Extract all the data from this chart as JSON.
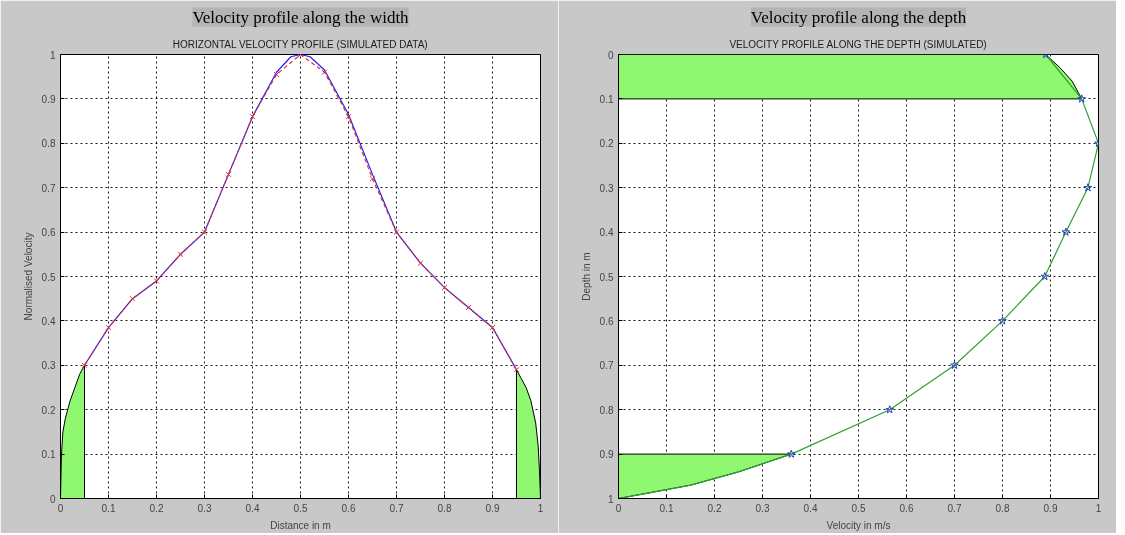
{
  "chart_data": [
    {
      "type": "line",
      "title": "Velocity profile along the width",
      "subtitle": "HORIZONTAL VELOCITY PROFILE (SIMULATED DATA)",
      "xlabel": "Distance in m",
      "ylabel": "Normalised Velocity",
      "xlim": [
        0,
        1
      ],
      "ylim": [
        0,
        1
      ],
      "xticks": [
        0,
        0.1,
        0.2,
        0.3,
        0.4,
        0.5,
        0.6,
        0.7,
        0.8,
        0.9,
        1
      ],
      "yticks": [
        0,
        0.1,
        0.2,
        0.3,
        0.4,
        0.5,
        0.6,
        0.7,
        0.8,
        0.9,
        1
      ],
      "grid": true,
      "series": [
        {
          "type": "area",
          "color": "#90f870",
          "x": [
            0,
            0.002,
            0.005,
            0.01,
            0.02,
            0.03,
            0.04,
            0.05,
            0.05
          ],
          "values": [
            0,
            0.1,
            0.15,
            0.18,
            0.22,
            0.25,
            0.28,
            0.3,
            0
          ]
        },
        {
          "type": "area",
          "color": "#90f870",
          "x": [
            0.95,
            0.95,
            0.96,
            0.97,
            0.98,
            0.99,
            0.995,
            0.998,
            1
          ],
          "values": [
            0,
            0.29,
            0.27,
            0.25,
            0.22,
            0.17,
            0.12,
            0.06,
            0
          ]
        },
        {
          "type": "line",
          "color": "#2020ff",
          "line_style": "solid",
          "marker": "none",
          "x": [
            0.05,
            0.1,
            0.15,
            0.2,
            0.25,
            0.3,
            0.35,
            0.4,
            0.45,
            0.48,
            0.5,
            0.52,
            0.55,
            0.6,
            0.65,
            0.7,
            0.75,
            0.8,
            0.85,
            0.9,
            0.95
          ],
          "values": [
            0.3,
            0.385,
            0.45,
            0.49,
            0.55,
            0.6,
            0.73,
            0.86,
            0.96,
            0.995,
            1.0,
            0.995,
            0.965,
            0.865,
            0.73,
            0.6,
            0.53,
            0.475,
            0.43,
            0.385,
            0.29
          ]
        },
        {
          "type": "line",
          "color": "#e03030",
          "line_style": "dashed",
          "marker": "cross",
          "x": [
            0.05,
            0.1,
            0.15,
            0.2,
            0.25,
            0.3,
            0.35,
            0.4,
            0.45,
            0.5,
            0.55,
            0.6,
            0.65,
            0.7,
            0.75,
            0.8,
            0.85,
            0.9,
            0.95
          ],
          "values": [
            0.3,
            0.385,
            0.45,
            0.49,
            0.55,
            0.6,
            0.73,
            0.86,
            0.955,
            1.0,
            0.96,
            0.86,
            0.72,
            0.6,
            0.53,
            0.475,
            0.43,
            0.385,
            0.29
          ]
        }
      ]
    },
    {
      "type": "line",
      "title": "Velocity profile along the depth",
      "subtitle": "VELOCITY PROFILE ALONG THE DEPTH (SIMULATED)",
      "xlabel": "Velocity in m/s",
      "ylabel": "Depth in m",
      "xlim": [
        0,
        1
      ],
      "ylim": [
        1,
        0
      ],
      "xticks": [
        0,
        0.1,
        0.2,
        0.3,
        0.4,
        0.5,
        0.6,
        0.7,
        0.8,
        0.9,
        1
      ],
      "yticks": [
        0,
        0.1,
        0.2,
        0.3,
        0.4,
        0.5,
        0.6,
        0.7,
        0.8,
        0.9,
        1
      ],
      "grid": true,
      "series": [
        {
          "type": "area",
          "color": "#90f870",
          "x": [
            0,
            0.89,
            0.92,
            0.945,
            0.965,
            0
          ],
          "values": [
            0,
            0,
            0.03,
            0.06,
            0.1,
            0.1
          ]
        },
        {
          "type": "area",
          "color": "#90f870",
          "x": [
            0,
            0.05,
            0.15,
            0.25,
            0.36,
            0
          ],
          "values": [
            1.0,
            0.99,
            0.97,
            0.94,
            0.9,
            0.9
          ]
        },
        {
          "type": "line",
          "color": "#30a030",
          "line_style": "solid",
          "marker": "none",
          "x": [
            0.89,
            0.965,
            1.0,
            0.978,
            0.932,
            0.888,
            0.8,
            0.7,
            0.565,
            0.36,
            0.25,
            0.15,
            0.05,
            0
          ],
          "values": [
            0,
            0.1,
            0.2,
            0.3,
            0.4,
            0.5,
            0.6,
            0.7,
            0.8,
            0.9,
            0.94,
            0.97,
            0.99,
            1.0
          ]
        },
        {
          "type": "scatter",
          "color": "#2040c0",
          "marker": "star",
          "x": [
            0.89,
            0.965,
            1.0,
            0.978,
            0.932,
            0.888,
            0.8,
            0.7,
            0.565,
            0.36
          ],
          "values": [
            0,
            0.1,
            0.2,
            0.3,
            0.4,
            0.5,
            0.6,
            0.7,
            0.8,
            0.9
          ]
        }
      ]
    }
  ]
}
